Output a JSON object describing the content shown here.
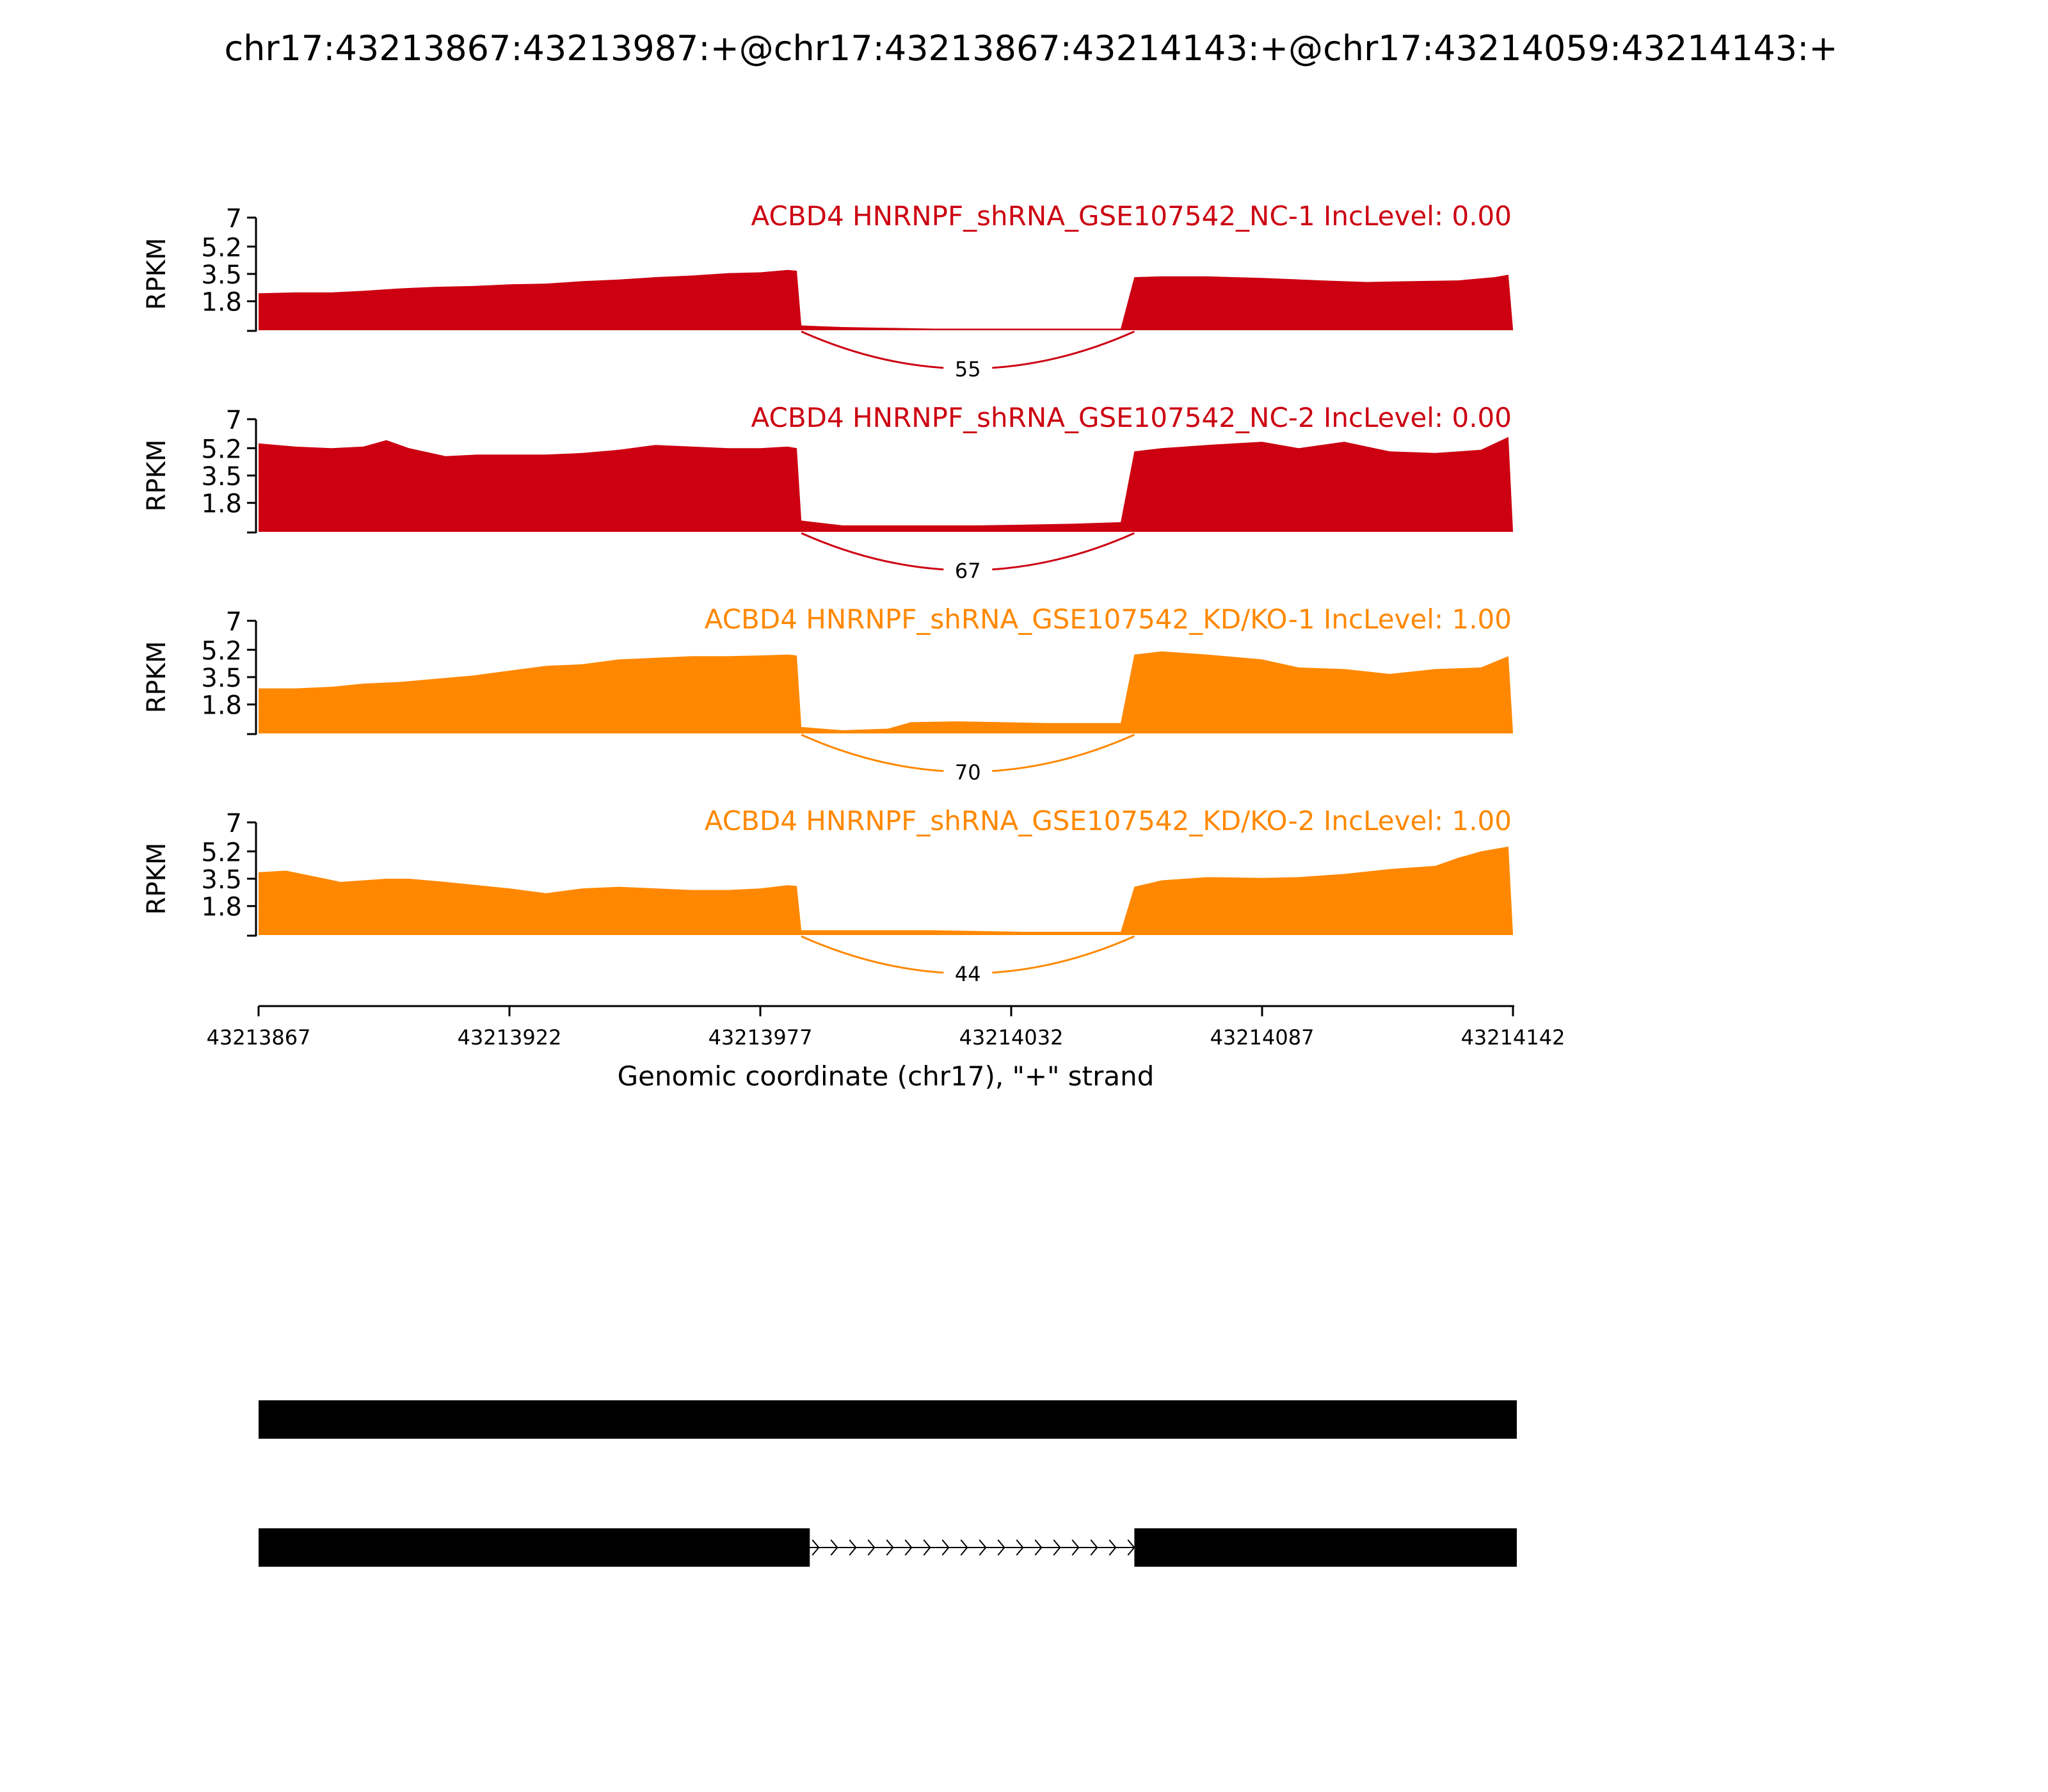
{
  "figure": {
    "title": "chr17:43213867:43213987:+@chr17:43213867:43214143:+@chr17:43214059:43214143:+"
  },
  "chart_data": {
    "type": "area",
    "subtype": "sashimi",
    "title": "chr17:43213867:43213987:+@chr17:43213867:43214143:+@chr17:43214059:43214143:+",
    "xlabel": "Genomic coordinate (chr17), \"+\" strand",
    "xlim": [
      43213867,
      43214142
    ],
    "xticks": [
      43213867,
      43213922,
      43213977,
      43214032,
      43214087,
      43214142
    ],
    "ylabel": "RPKM",
    "ylim": [
      0,
      7
    ],
    "yticks": [
      "1.8",
      "3.5",
      "5.2",
      "7"
    ],
    "grid": false,
    "series": [
      {
        "name": "ACBD4 HNRNPF_shRNA_GSE107542_NC-1 IncLevel: 0.00",
        "color": "#cc0011",
        "junction": {
          "start": 43213986,
          "end": 43214059,
          "count": 55
        },
        "coverage": [
          [
            43213867,
            2.3
          ],
          [
            43213875,
            2.35
          ],
          [
            43213883,
            2.35
          ],
          [
            43213890,
            2.45
          ],
          [
            43213898,
            2.6
          ],
          [
            43213906,
            2.7
          ],
          [
            43213914,
            2.75
          ],
          [
            43213922,
            2.85
          ],
          [
            43213930,
            2.9
          ],
          [
            43213938,
            3.05
          ],
          [
            43213946,
            3.15
          ],
          [
            43213954,
            3.3
          ],
          [
            43213962,
            3.4
          ],
          [
            43213970,
            3.55
          ],
          [
            43213977,
            3.6
          ],
          [
            43213983,
            3.75
          ],
          [
            43213985,
            3.7
          ],
          [
            43213986,
            0.3
          ],
          [
            43213995,
            0.2
          ],
          [
            43214005,
            0.15
          ],
          [
            43214015,
            0.1
          ],
          [
            43214025,
            0.1
          ],
          [
            43214035,
            0.1
          ],
          [
            43214045,
            0.1
          ],
          [
            43214056,
            0.1
          ],
          [
            43214059,
            3.3
          ],
          [
            43214065,
            3.35
          ],
          [
            43214075,
            3.35
          ],
          [
            43214087,
            3.25
          ],
          [
            43214100,
            3.1
          ],
          [
            43214110,
            3.0
          ],
          [
            43214120,
            3.05
          ],
          [
            43214130,
            3.1
          ],
          [
            43214138,
            3.3
          ],
          [
            43214141,
            3.45
          ],
          [
            43214142,
            0.1
          ]
        ]
      },
      {
        "name": "ACBD4 HNRNPF_shRNA_GSE107542_NC-2 IncLevel: 0.00",
        "color": "#cc0011",
        "junction": {
          "start": 43213986,
          "end": 43214059,
          "count": 67
        },
        "coverage": [
          [
            43213867,
            5.5
          ],
          [
            43213875,
            5.3
          ],
          [
            43213883,
            5.2
          ],
          [
            43213890,
            5.3
          ],
          [
            43213895,
            5.7
          ],
          [
            43213900,
            5.2
          ],
          [
            43213908,
            4.7
          ],
          [
            43213915,
            4.8
          ],
          [
            43213922,
            4.8
          ],
          [
            43213930,
            4.8
          ],
          [
            43213938,
            4.9
          ],
          [
            43213946,
            5.1
          ],
          [
            43213954,
            5.4
          ],
          [
            43213962,
            5.3
          ],
          [
            43213970,
            5.2
          ],
          [
            43213977,
            5.2
          ],
          [
            43213983,
            5.3
          ],
          [
            43213985,
            5.2
          ],
          [
            43213986,
            0.7
          ],
          [
            43213995,
            0.4
          ],
          [
            43214005,
            0.4
          ],
          [
            43214015,
            0.4
          ],
          [
            43214025,
            0.4
          ],
          [
            43214035,
            0.45
          ],
          [
            43214045,
            0.5
          ],
          [
            43214056,
            0.6
          ],
          [
            43214059,
            5.0
          ],
          [
            43214065,
            5.2
          ],
          [
            43214075,
            5.4
          ],
          [
            43214087,
            5.6
          ],
          [
            43214095,
            5.2
          ],
          [
            43214105,
            5.6
          ],
          [
            43214115,
            5.0
          ],
          [
            43214125,
            4.9
          ],
          [
            43214135,
            5.1
          ],
          [
            43214141,
            5.9
          ],
          [
            43214142,
            0.1
          ]
        ]
      },
      {
        "name": "ACBD4 HNRNPF_shRNA_GSE107542_KD/KO-1 IncLevel: 1.00",
        "color": "#ff8800",
        "junction": {
          "start": 43213986,
          "end": 43214059,
          "count": 70
        },
        "coverage": [
          [
            43213867,
            2.8
          ],
          [
            43213875,
            2.8
          ],
          [
            43213883,
            2.9
          ],
          [
            43213890,
            3.1
          ],
          [
            43213898,
            3.2
          ],
          [
            43213906,
            3.4
          ],
          [
            43213914,
            3.6
          ],
          [
            43213922,
            3.9
          ],
          [
            43213930,
            4.2
          ],
          [
            43213938,
            4.3
          ],
          [
            43213946,
            4.6
          ],
          [
            43213954,
            4.7
          ],
          [
            43213962,
            4.8
          ],
          [
            43213970,
            4.8
          ],
          [
            43213977,
            4.85
          ],
          [
            43213983,
            4.9
          ],
          [
            43213985,
            4.85
          ],
          [
            43213986,
            0.4
          ],
          [
            43213995,
            0.2
          ],
          [
            43214005,
            0.3
          ],
          [
            43214010,
            0.7
          ],
          [
            43214020,
            0.75
          ],
          [
            43214030,
            0.7
          ],
          [
            43214040,
            0.65
          ],
          [
            43214050,
            0.65
          ],
          [
            43214056,
            0.65
          ],
          [
            43214059,
            4.9
          ],
          [
            43214065,
            5.1
          ],
          [
            43214075,
            4.9
          ],
          [
            43214087,
            4.6
          ],
          [
            43214095,
            4.1
          ],
          [
            43214105,
            4.0
          ],
          [
            43214115,
            3.7
          ],
          [
            43214125,
            4.0
          ],
          [
            43214135,
            4.1
          ],
          [
            43214141,
            4.8
          ],
          [
            43214142,
            0.1
          ]
        ]
      },
      {
        "name": "ACBD4 HNRNPF_shRNA_GSE107542_KD/KO-2 IncLevel: 1.00",
        "color": "#ff8800",
        "junction": {
          "start": 43213986,
          "end": 43214059,
          "count": 44
        },
        "coverage": [
          [
            43213867,
            3.9
          ],
          [
            43213873,
            4.0
          ],
          [
            43213880,
            3.6
          ],
          [
            43213885,
            3.3
          ],
          [
            43213890,
            3.4
          ],
          [
            43213895,
            3.5
          ],
          [
            43213900,
            3.5
          ],
          [
            43213908,
            3.3
          ],
          [
            43213915,
            3.1
          ],
          [
            43213922,
            2.9
          ],
          [
            43213930,
            2.6
          ],
          [
            43213938,
            2.9
          ],
          [
            43213946,
            3.0
          ],
          [
            43213954,
            2.9
          ],
          [
            43213962,
            2.8
          ],
          [
            43213970,
            2.8
          ],
          [
            43213977,
            2.9
          ],
          [
            43213983,
            3.1
          ],
          [
            43213985,
            3.05
          ],
          [
            43213986,
            0.3
          ],
          [
            43213995,
            0.3
          ],
          [
            43214005,
            0.3
          ],
          [
            43214015,
            0.3
          ],
          [
            43214025,
            0.25
          ],
          [
            43214035,
            0.2
          ],
          [
            43214045,
            0.2
          ],
          [
            43214056,
            0.2
          ],
          [
            43214059,
            3.0
          ],
          [
            43214065,
            3.4
          ],
          [
            43214075,
            3.6
          ],
          [
            43214087,
            3.55
          ],
          [
            43214095,
            3.6
          ],
          [
            43214105,
            3.8
          ],
          [
            43214115,
            4.1
          ],
          [
            43214125,
            4.3
          ],
          [
            43214130,
            4.8
          ],
          [
            43214135,
            5.2
          ],
          [
            43214141,
            5.5
          ],
          [
            43214142,
            0.1
          ]
        ]
      }
    ],
    "isoforms": [
      {
        "exons": [
          [
            43213867,
            43214142
          ]
        ]
      },
      {
        "exons": [
          [
            43213867,
            43213987
          ],
          [
            43214059,
            43214142
          ]
        ]
      }
    ]
  }
}
